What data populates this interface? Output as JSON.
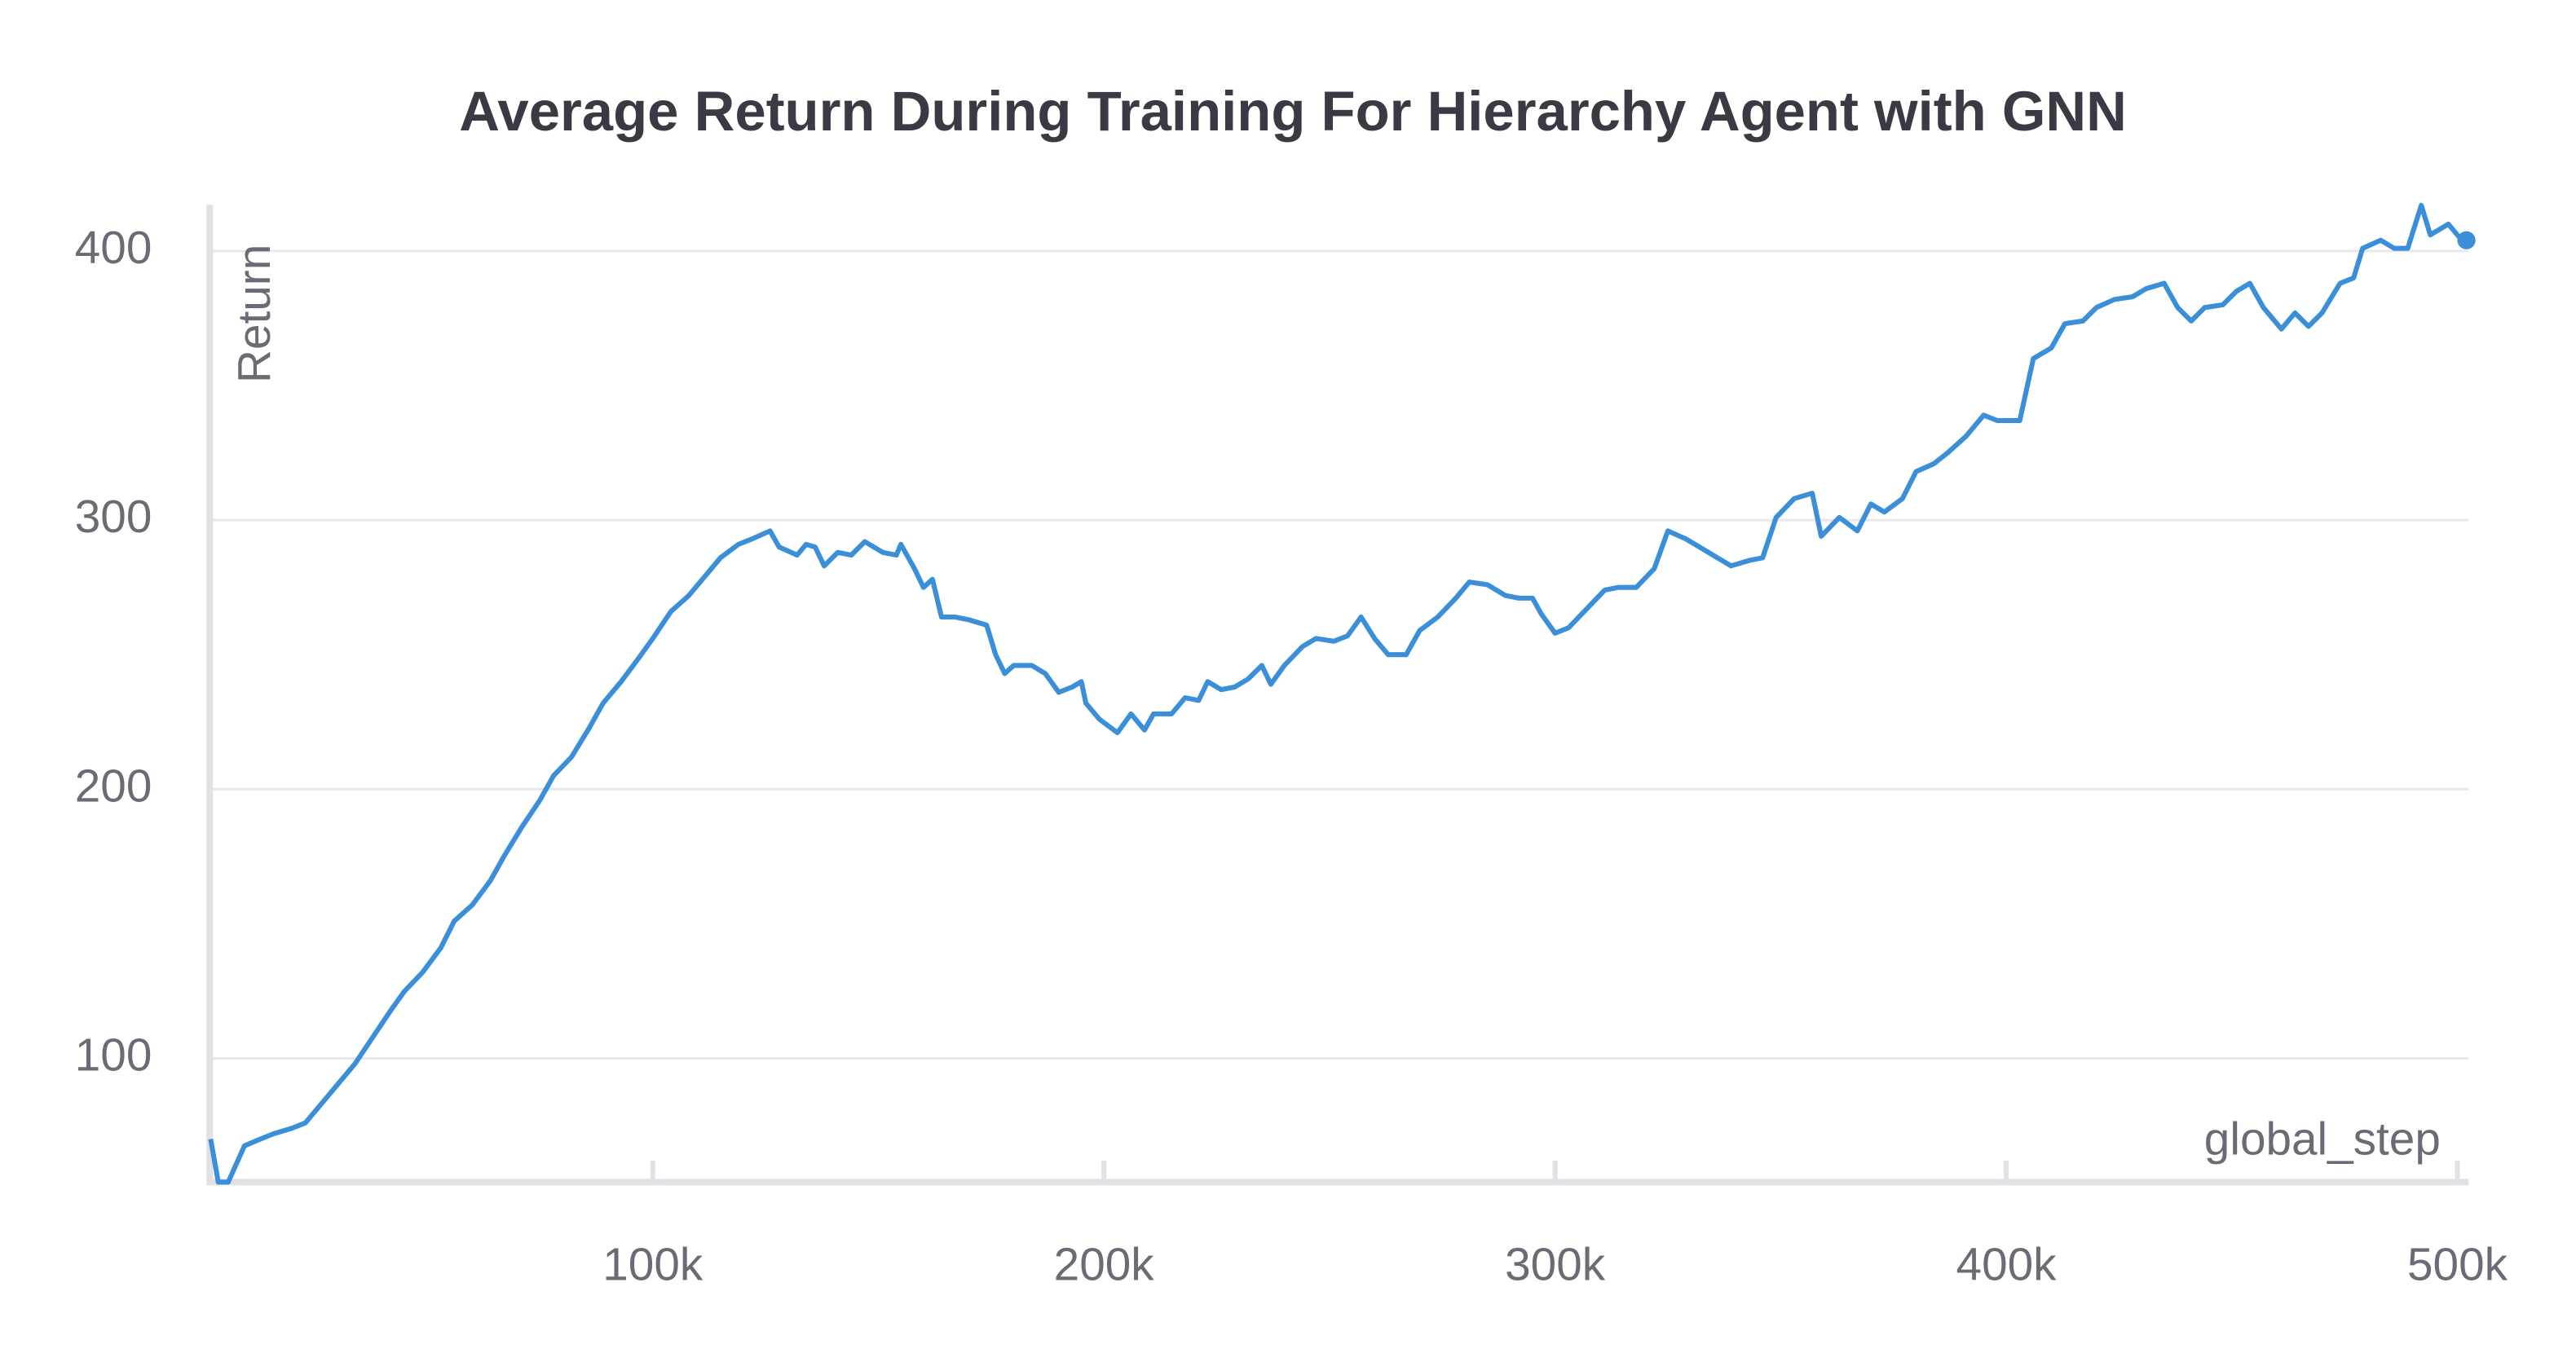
{
  "chart_data": {
    "type": "line",
    "title": "Average Return During Training For Hierarchy Agent with GNN",
    "x_label": "global_step",
    "y_label": "Return",
    "xlim": [
      1800,
      502500
    ],
    "ylim": [
      54,
      418
    ],
    "xticks": [
      {
        "value": 100000,
        "label": "100k"
      },
      {
        "value": 200000,
        "label": "200k"
      },
      {
        "value": 300000,
        "label": "300k"
      },
      {
        "value": 400000,
        "label": "400k"
      },
      {
        "value": 500000,
        "label": "500k"
      }
    ],
    "yticks": [
      100,
      200,
      300,
      400
    ],
    "grid": true,
    "series": [
      {
        "color": "#3b8fd9",
        "x": [
          2000,
          3700,
          5900,
          9500,
          13000,
          16000,
          20000,
          23000,
          28000,
          34000,
          38000,
          42000,
          45000,
          49000,
          53000,
          56000,
          60000,
          64000,
          67000,
          71000,
          75000,
          78000,
          82000,
          86000,
          89000,
          93000,
          97000,
          100000,
          104000,
          108000,
          111000,
          115000,
          119000,
          122000,
          126000,
          128000,
          132000,
          134000,
          136000,
          138000,
          141000,
          144000,
          147000,
          151000,
          154000,
          155000,
          158000,
          160000,
          162000,
          164000,
          167000,
          170000,
          174000,
          176000,
          178000,
          180000,
          184000,
          187000,
          190000,
          193000,
          195000,
          196000,
          199000,
          203000,
          206000,
          209000,
          211000,
          215000,
          218000,
          221000,
          223000,
          226000,
          229000,
          232000,
          235000,
          237000,
          240000,
          244000,
          247000,
          251000,
          254000,
          257000,
          260000,
          263000,
          267000,
          270000,
          274000,
          278000,
          281000,
          285000,
          289000,
          292000,
          295000,
          297000,
          300000,
          303000,
          307000,
          311000,
          314000,
          318000,
          322000,
          325000,
          329000,
          332000,
          336000,
          339000,
          343000,
          346000,
          349000,
          353000,
          357000,
          359000,
          363000,
          367000,
          370000,
          373000,
          377000,
          380000,
          384000,
          387000,
          391000,
          395000,
          398000,
          403000,
          406000,
          410000,
          413000,
          417000,
          420000,
          424000,
          428000,
          431000,
          435000,
          438000,
          441000,
          444000,
          448000,
          451000,
          454000,
          457000,
          461000,
          464000,
          467000,
          470000,
          474000,
          477000,
          479000,
          483000,
          486000,
          489000,
          492000,
          494000,
          498000,
          501000,
          502000
        ],
        "values": [
          70,
          54,
          54,
          67.5,
          70,
          72,
          74,
          76,
          86,
          98,
          108,
          118,
          125,
          132,
          141,
          151,
          157,
          166,
          175,
          186,
          196,
          205,
          212,
          223,
          232,
          240,
          249,
          256,
          266,
          272,
          278,
          286,
          291,
          293,
          296,
          290,
          287,
          291,
          290,
          283,
          288,
          287,
          292,
          288,
          287,
          291,
          282,
          275,
          278,
          264,
          264,
          263,
          261,
          250,
          243,
          246,
          246,
          243,
          236,
          238,
          240,
          232,
          226,
          221,
          228,
          222,
          228,
          228,
          234,
          233,
          240,
          237,
          238,
          241,
          246,
          239,
          246,
          253,
          256,
          255,
          257,
          264,
          256,
          250,
          250,
          259,
          264,
          271,
          277,
          276,
          272,
          271,
          271,
          265,
          258,
          260,
          267,
          274,
          275,
          275,
          282,
          296,
          293,
          290,
          286,
          283,
          285,
          286,
          301,
          308,
          310,
          294,
          301,
          296,
          306,
          303,
          308,
          318,
          321,
          325,
          331,
          339,
          337,
          337,
          360,
          364,
          373,
          374,
          379,
          382,
          383,
          386,
          388,
          379,
          374,
          379,
          380,
          385,
          388,
          379,
          371,
          377,
          372,
          377,
          388,
          390,
          401,
          404,
          401,
          401,
          417,
          406,
          410,
          404,
          404
        ]
      }
    ]
  }
}
